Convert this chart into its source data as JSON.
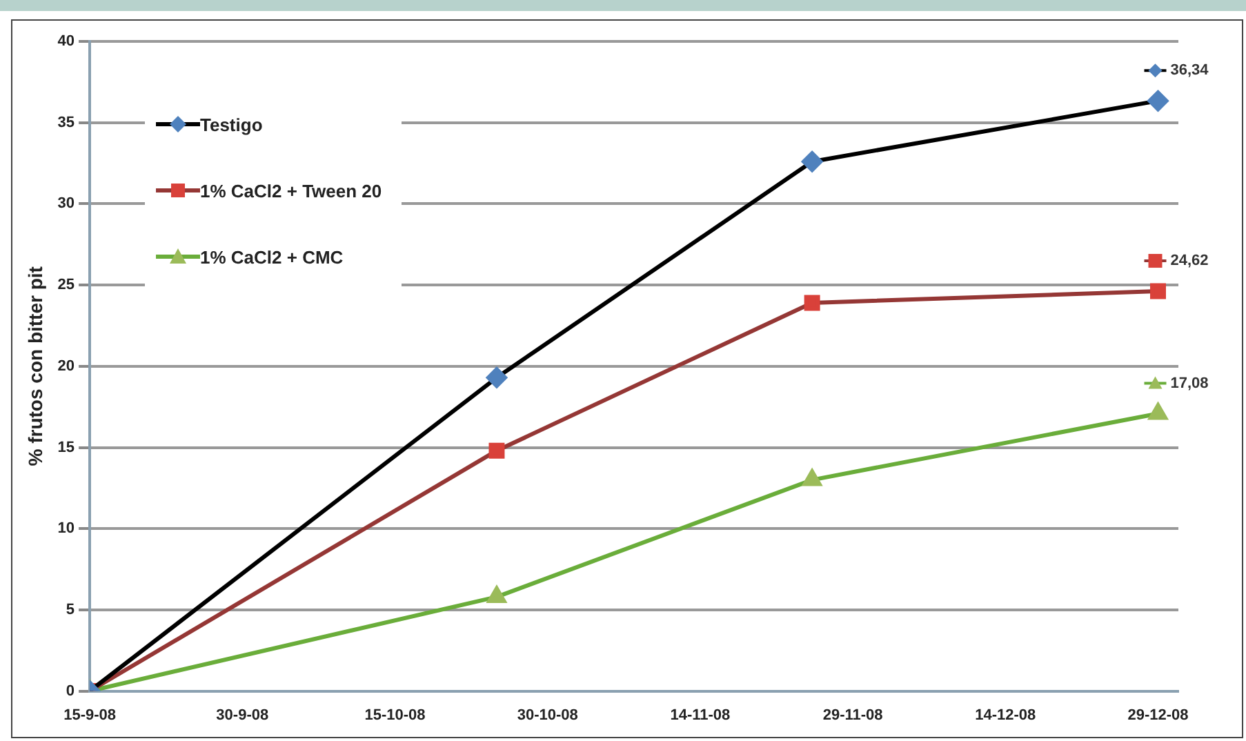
{
  "chart_data": {
    "type": "line",
    "ylabel": "% frutos con bitter pit",
    "x": [
      "--09-15",
      "--10-25",
      "--11-25",
      "--12-29"
    ],
    "xlim": [
      "--09-15",
      "--12-31"
    ],
    "xticks": [
      {
        "value": "--09-15",
        "label": "15-9-08"
      },
      {
        "value": "--09-30",
        "label": "30-9-08"
      },
      {
        "value": "--10-15",
        "label": "15-10-08"
      },
      {
        "value": "--10-30",
        "label": "30-10-08"
      },
      {
        "value": "--11-14",
        "label": "14-11-08"
      },
      {
        "value": "--11-29",
        "label": "29-11-08"
      },
      {
        "value": "--12-14",
        "label": "14-12-08"
      },
      {
        "value": "--12-29",
        "label": "29-12-08"
      }
    ],
    "ylim": [
      0,
      40
    ],
    "yticks": [
      0,
      5,
      10,
      15,
      20,
      25,
      30,
      35,
      40
    ],
    "grid": "y",
    "legend": "top left",
    "series": [
      {
        "name": "Testigo",
        "color": "#000000",
        "colors": [
          "#4f81bd",
          "#4f81bd",
          "#4f81bd",
          "#4f81bd"
        ],
        "marker": "diamond",
        "values": [
          0,
          19.3,
          32.6,
          36.34
        ],
        "value_labels": [
          null,
          null,
          null,
          "36,34"
        ]
      },
      {
        "name": "1% CaCl2 + Tween 20",
        "color": "#953735",
        "colors": [
          "#d9413a",
          "#d9413a",
          "#d9413a",
          "#d9413a"
        ],
        "marker": "square",
        "values": [
          0,
          14.8,
          23.9,
          24.62
        ],
        "value_labels": [
          null,
          null,
          null,
          "24,62"
        ]
      },
      {
        "name": "1% CaCl2 + CMC",
        "color": "#6aad3a",
        "colors": [
          "#9bbb59",
          "#9bbb59",
          "#9bbb59",
          "#9bbb59"
        ],
        "marker": "triangle",
        "values": [
          0,
          5.8,
          13.0,
          17.08
        ],
        "value_labels": [
          null,
          null,
          null,
          "17,08"
        ]
      }
    ]
  }
}
